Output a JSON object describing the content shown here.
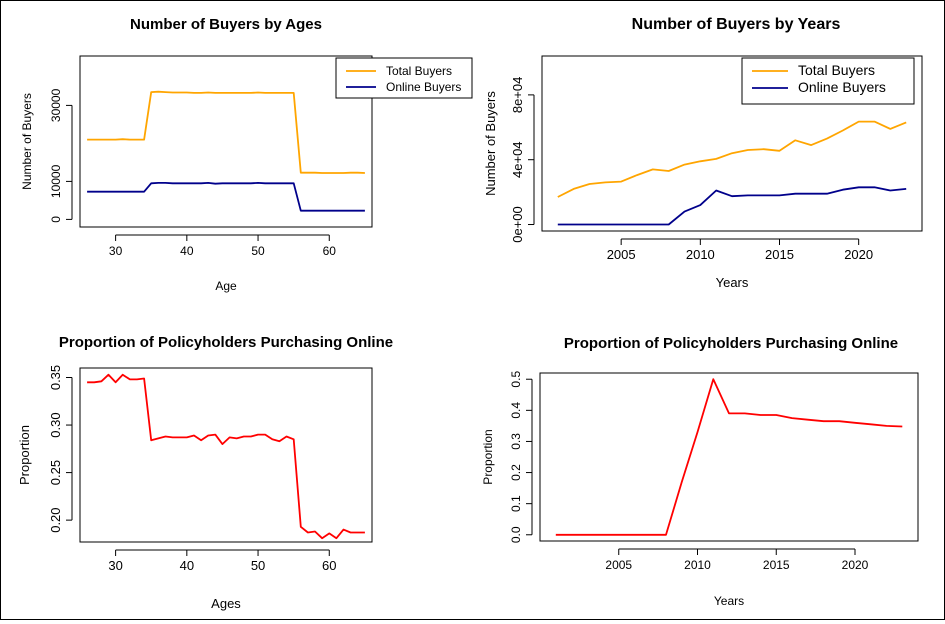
{
  "chart_data": [
    {
      "type": "line",
      "title": "Number of Buyers by Ages",
      "xlabel": "Age",
      "ylabel": "Number of Buyers",
      "xlim": [
        25,
        66
      ],
      "ylim": [
        -2000,
        43000
      ],
      "xticks": [
        30,
        40,
        50,
        60
      ],
      "yticks": [
        0,
        10000,
        30000
      ],
      "ytick_labels": [
        "0",
        "10000",
        "30000"
      ],
      "legend_position": "top-right",
      "x": [
        26,
        27,
        28,
        29,
        30,
        31,
        32,
        33,
        34,
        35,
        36,
        37,
        38,
        39,
        40,
        41,
        42,
        43,
        44,
        45,
        46,
        47,
        48,
        49,
        50,
        51,
        52,
        53,
        54,
        55,
        56,
        57,
        58,
        59,
        60,
        61,
        62,
        63,
        64,
        65
      ],
      "series": [
        {
          "name": "Total Buyers",
          "color": "#FFA500",
          "values": [
            21000,
            21000,
            21000,
            21000,
            21000,
            21100,
            21000,
            21000,
            21000,
            33500,
            33600,
            33500,
            33400,
            33400,
            33400,
            33300,
            33300,
            33400,
            33300,
            33300,
            33300,
            33300,
            33300,
            33300,
            33400,
            33300,
            33300,
            33300,
            33300,
            33300,
            12300,
            12300,
            12300,
            12200,
            12200,
            12200,
            12200,
            12300,
            12300,
            12200
          ]
        },
        {
          "name": "Online Buyers",
          "color": "#00008B",
          "values": [
            7300,
            7300,
            7300,
            7300,
            7300,
            7300,
            7300,
            7300,
            7300,
            9500,
            9600,
            9600,
            9500,
            9500,
            9500,
            9500,
            9500,
            9600,
            9400,
            9500,
            9500,
            9500,
            9500,
            9500,
            9600,
            9500,
            9500,
            9500,
            9500,
            9500,
            2300,
            2300,
            2300,
            2300,
            2300,
            2300,
            2300,
            2300,
            2300,
            2300
          ]
        }
      ]
    },
    {
      "type": "line",
      "title": "Number of Buyers by Years",
      "xlabel": "Years",
      "ylabel": "Number of Buyers",
      "xlim": [
        2000,
        2024
      ],
      "ylim": [
        -4000,
        104000
      ],
      "xticks": [
        2005,
        2010,
        2015,
        2020
      ],
      "yticks": [
        0,
        40000,
        80000
      ],
      "ytick_labels": [
        "0e+00",
        "4e+04",
        "8e+04"
      ],
      "legend_position": "top-right",
      "x": [
        2001,
        2002,
        2003,
        2004,
        2005,
        2006,
        2007,
        2008,
        2009,
        2010,
        2011,
        2012,
        2013,
        2014,
        2015,
        2016,
        2017,
        2018,
        2019,
        2020,
        2021,
        2022,
        2023
      ],
      "series": [
        {
          "name": "Total Buyers",
          "color": "#FFA500",
          "values": [
            17000,
            22000,
            25000,
            26000,
            26500,
            30500,
            34000,
            33000,
            37000,
            39000,
            40500,
            44000,
            46000,
            46500,
            45500,
            52000,
            49000,
            53000,
            58000,
            63500,
            63500,
            59000,
            63000
          ]
        },
        {
          "name": "Online Buyers",
          "color": "#00008B",
          "values": [
            0,
            0,
            0,
            0,
            0,
            0,
            0,
            0,
            8000,
            12000,
            21000,
            17500,
            18000,
            18000,
            18000,
            19000,
            19000,
            19000,
            21500,
            23000,
            23000,
            21000,
            22000
          ]
        }
      ]
    },
    {
      "type": "line",
      "title": "Proportion of Policyholders Purchasing Online",
      "xlabel": "Ages",
      "ylabel": "Proportion",
      "xlim": [
        25,
        66
      ],
      "ylim": [
        0.177,
        0.36
      ],
      "xticks": [
        30,
        40,
        50,
        60
      ],
      "yticks": [
        0.2,
        0.25,
        0.3,
        0.35
      ],
      "ytick_labels": [
        "0.20",
        "0.25",
        "0.30",
        "0.35"
      ],
      "x": [
        26,
        27,
        28,
        29,
        30,
        31,
        32,
        33,
        34,
        35,
        36,
        37,
        38,
        39,
        40,
        41,
        42,
        43,
        44,
        45,
        46,
        47,
        48,
        49,
        50,
        51,
        52,
        53,
        54,
        55,
        56,
        57,
        58,
        59,
        60,
        61,
        62,
        63,
        64,
        65
      ],
      "series": [
        {
          "name": "",
          "color": "#FF0000",
          "values": [
            0.345,
            0.345,
            0.346,
            0.353,
            0.345,
            0.353,
            0.348,
            0.348,
            0.349,
            0.284,
            0.286,
            0.288,
            0.287,
            0.287,
            0.287,
            0.289,
            0.284,
            0.289,
            0.29,
            0.28,
            0.287,
            0.286,
            0.288,
            0.288,
            0.29,
            0.29,
            0.285,
            0.283,
            0.288,
            0.285,
            0.193,
            0.187,
            0.188,
            0.181,
            0.186,
            0.181,
            0.19,
            0.187,
            0.187,
            0.187
          ]
        }
      ]
    },
    {
      "type": "line",
      "title": "Proportion of Policyholders Purchasing Online",
      "xlabel": "Years",
      "ylabel": "Proportion",
      "xlim": [
        2000,
        2024
      ],
      "ylim": [
        -0.02,
        0.52
      ],
      "xticks": [
        2005,
        2010,
        2015,
        2020
      ],
      "yticks": [
        0.0,
        0.1,
        0.2,
        0.3,
        0.4,
        0.5
      ],
      "ytick_labels": [
        "0.0",
        "0.1",
        "0.2",
        "0.3",
        "0.4",
        "0.5"
      ],
      "x": [
        2001,
        2002,
        2003,
        2004,
        2005,
        2006,
        2007,
        2008,
        2009,
        2010,
        2011,
        2012,
        2013,
        2014,
        2015,
        2016,
        2017,
        2018,
        2019,
        2020,
        2021,
        2022,
        2023
      ],
      "series": [
        {
          "name": "",
          "color": "#FF0000",
          "values": [
            0,
            0,
            0,
            0,
            0,
            0,
            0,
            0,
            0.17,
            0.33,
            0.5,
            0.39,
            0.39,
            0.385,
            0.385,
            0.375,
            0.37,
            0.365,
            0.365,
            0.36,
            0.355,
            0.35,
            0.348
          ]
        }
      ]
    }
  ]
}
